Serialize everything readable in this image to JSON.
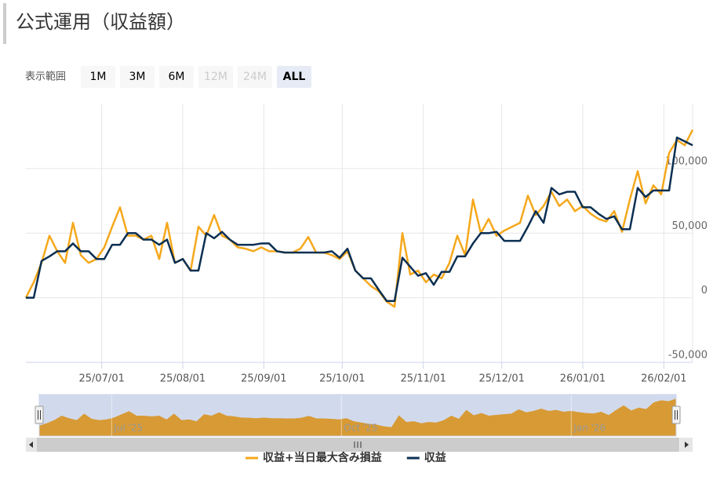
{
  "header": {
    "title": "公式運用（収益額）"
  },
  "range_selector": {
    "label": "表示範囲",
    "buttons": [
      {
        "label": "1M",
        "state": "normal"
      },
      {
        "label": "3M",
        "state": "normal"
      },
      {
        "label": "6M",
        "state": "normal"
      },
      {
        "label": "12M",
        "state": "disabled"
      },
      {
        "label": "24M",
        "state": "disabled"
      },
      {
        "label": "ALL",
        "state": "selected"
      }
    ]
  },
  "chart_data": {
    "type": "line",
    "x": [
      "25/06/02",
      "25/06/05",
      "25/06/08",
      "25/06/11",
      "25/06/14",
      "25/06/17",
      "25/06/20",
      "25/06/23",
      "25/06/26",
      "25/06/29",
      "25/07/02",
      "25/07/05",
      "25/07/08",
      "25/07/11",
      "25/07/14",
      "25/07/17",
      "25/07/20",
      "25/07/23",
      "25/07/26",
      "25/07/29",
      "25/08/01",
      "25/08/04",
      "25/08/07",
      "25/08/10",
      "25/08/13",
      "25/08/16",
      "25/08/19",
      "25/08/22",
      "25/08/25",
      "25/08/28",
      "25/08/31",
      "25/09/03",
      "25/09/06",
      "25/09/09",
      "25/09/12",
      "25/09/15",
      "25/09/18",
      "25/09/21",
      "25/09/24",
      "25/09/27",
      "25/09/30",
      "25/10/03",
      "25/10/06",
      "25/10/09",
      "25/10/12",
      "25/10/15",
      "25/10/18",
      "25/10/21",
      "25/10/24",
      "25/10/27",
      "25/10/30",
      "25/11/02",
      "25/11/05",
      "25/11/08",
      "25/11/11",
      "25/11/14",
      "25/11/17",
      "25/11/20",
      "25/11/23",
      "25/11/26",
      "25/11/29",
      "25/12/02",
      "25/12/05",
      "25/12/08",
      "25/12/11",
      "25/12/14",
      "25/12/17",
      "25/12/20",
      "25/12/23",
      "25/12/26",
      "25/12/29",
      "26/01/01",
      "26/01/04",
      "26/01/07",
      "26/01/10",
      "26/01/13",
      "26/01/16",
      "26/01/19",
      "26/01/22",
      "26/01/25",
      "26/01/28",
      "26/01/31",
      "26/02/03",
      "26/02/06",
      "26/02/09",
      "26/02/12"
    ],
    "series": [
      {
        "name": "収益+当日最大含み損益",
        "color": "#f5a81c",
        "values": [
          0,
          12000,
          27000,
          48000,
          36000,
          27000,
          58000,
          33000,
          27000,
          30000,
          39000,
          55000,
          70000,
          48000,
          48000,
          45000,
          48000,
          30000,
          58000,
          27000,
          30000,
          21000,
          55000,
          48000,
          64000,
          48000,
          45000,
          39000,
          38000,
          36000,
          39000,
          36000,
          36000,
          35000,
          35000,
          38000,
          47000,
          35000,
          35000,
          33000,
          30000,
          36000,
          21000,
          15000,
          9000,
          5000,
          -3000,
          -7000,
          50000,
          18000,
          21000,
          12000,
          18000,
          15000,
          27000,
          48000,
          33000,
          76000,
          50000,
          61000,
          48000,
          52000,
          55000,
          58000,
          79000,
          64000,
          71000,
          82000,
          71000,
          76000,
          67000,
          71000,
          65000,
          61000,
          59000,
          67000,
          51000,
          76000,
          98000,
          73000,
          87000,
          80000,
          112000,
          122000,
          118000,
          130000
        ]
      },
      {
        "name": "収益",
        "color": "#0b2f52",
        "values": [
          0,
          0,
          28500,
          32000,
          36000,
          36000,
          42000,
          36000,
          36000,
          30000,
          30000,
          41000,
          41000,
          50000,
          50000,
          45000,
          45000,
          41000,
          45000,
          27000,
          30000,
          21000,
          21000,
          50000,
          46000,
          51000,
          45000,
          41000,
          41000,
          41000,
          42000,
          42000,
          36000,
          35000,
          35000,
          35000,
          35000,
          35000,
          35000,
          36000,
          31000,
          38000,
          21000,
          15000,
          15000,
          6000,
          -2500,
          -2500,
          31000,
          24000,
          17000,
          19000,
          10000,
          20000,
          20000,
          32000,
          32000,
          42000,
          50000,
          50000,
          51000,
          44000,
          44000,
          44000,
          55000,
          67000,
          58000,
          85000,
          80000,
          82000,
          82000,
          70000,
          70000,
          65000,
          61000,
          63000,
          53000,
          53000,
          85000,
          78000,
          83000,
          83000,
          83000,
          124000,
          121000,
          118000
        ]
      }
    ],
    "xlim": [
      "25/06/02",
      "26/02/12"
    ],
    "xticks": [
      "25/07/01",
      "25/08/01",
      "25/09/01",
      "25/10/01",
      "25/11/01",
      "25/12/01",
      "26/01/01",
      "26/02/01"
    ],
    "ylim": [
      -50000,
      150000
    ],
    "yticks": [
      {
        "value": -50000,
        "label": "-50,000"
      },
      0,
      {
        "value": 50000,
        "label": "50,000"
      },
      {
        "value": 100000,
        "label": "100,000"
      }
    ],
    "grid": true,
    "legend": "bottom"
  },
  "navigator": {
    "ticks": [
      {
        "value": "25/07/01",
        "label": "Jul '25"
      },
      {
        "value": "25/10/01",
        "label": "Oct '25"
      },
      {
        "value": "26/01/01",
        "label": "Jan '26"
      }
    ],
    "color": "#d89a35"
  }
}
